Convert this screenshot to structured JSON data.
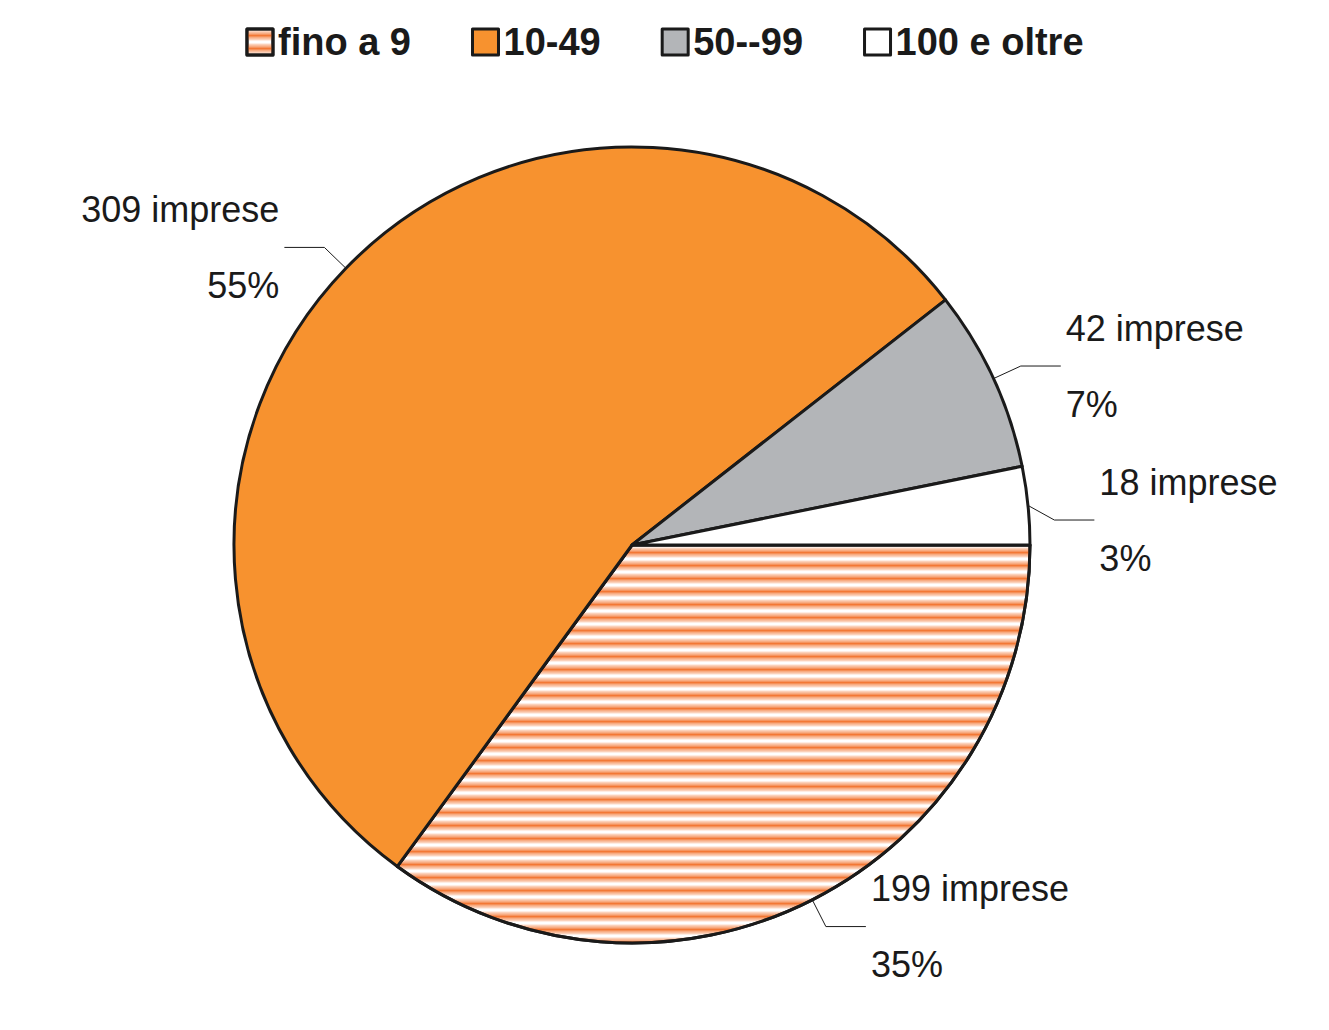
{
  "chart_data": {
    "type": "pie",
    "categories": [
      "fino a 9",
      "10-49",
      "50--99",
      "100 e oltre"
    ],
    "values": [
      199,
      309,
      42,
      18
    ],
    "value_labels": [
      "199 imprese",
      "309 imprese",
      "42 imprese",
      "18 imprese"
    ],
    "percentages": [
      35,
      55,
      7,
      3
    ],
    "percentage_labels": [
      "35%",
      "55%",
      "7%",
      "3%"
    ],
    "colors": [
      "#f26b21",
      "#f7922f",
      "#b3b5b8",
      "#ffffff"
    ],
    "legend": "top",
    "data_labels": true
  }
}
